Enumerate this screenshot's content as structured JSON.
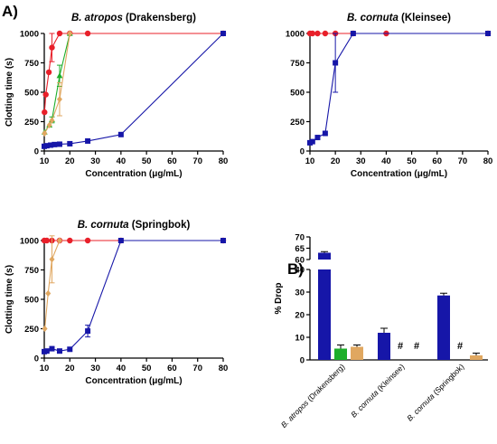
{
  "figure": {
    "label_a": "A)",
    "label_b": "B)"
  },
  "chart_data": [
    {
      "type": "line",
      "title_species": "B. atropos",
      "title_locality": " (Drakensberg)",
      "xlabel": "Concentration (μg/mL)",
      "ylabel": "Clotting time (s)",
      "xlim": [
        10,
        80
      ],
      "ylim": [
        0,
        1000
      ],
      "xticks": [
        10,
        20,
        30,
        40,
        50,
        60,
        70,
        80
      ],
      "yticks": [
        0,
        250,
        500,
        750,
        1000
      ],
      "series": [
        {
          "color": "#e8202a",
          "marker": "circle",
          "points": [
            [
              10.1,
              330
            ],
            [
              10.6,
              480
            ],
            [
              11.8,
              670
            ],
            [
              13,
              880
            ],
            [
              16,
              1000
            ],
            [
              20,
              1000
            ],
            [
              27,
              1000
            ],
            [
              80,
              1000
            ]
          ],
          "errors": [
            0,
            0,
            0,
            120,
            0,
            0,
            0,
            0
          ]
        },
        {
          "color": "#1cae2a",
          "marker": "triangle",
          "points": [
            [
              10.1,
              160
            ],
            [
              12,
              220
            ],
            [
              13,
              265
            ],
            [
              16,
              640
            ],
            [
              20,
              1000
            ]
          ],
          "errors": [
            0,
            0,
            25,
            90,
            0
          ]
        },
        {
          "color": "#e0a760",
          "marker": "diamond",
          "points": [
            [
              10.1,
              150
            ],
            [
              12,
              220
            ],
            [
              13,
              260
            ],
            [
              16,
              440
            ],
            [
              20,
              1000
            ]
          ],
          "errors": [
            0,
            0,
            0,
            140,
            0
          ]
        },
        {
          "color": "#1616a8",
          "marker": "square",
          "points": [
            [
              10,
              40
            ],
            [
              11,
              45
            ],
            [
              12.5,
              50
            ],
            [
              14,
              55
            ],
            [
              16,
              58
            ],
            [
              20,
              62
            ],
            [
              27,
              85
            ],
            [
              40,
              140
            ],
            [
              80,
              1000
            ]
          ],
          "errors": [
            0,
            0,
            0,
            0,
            0,
            0,
            0,
            0,
            0
          ]
        }
      ]
    },
    {
      "type": "line",
      "title_species": "B. cornuta",
      "title_locality": " (Kleinsee)",
      "xlabel": "Concentration (μg/mL)",
      "ylabel": "",
      "xlim": [
        10,
        80
      ],
      "ylim": [
        0,
        1000
      ],
      "xticks": [
        10,
        20,
        30,
        40,
        50,
        60,
        70,
        80
      ],
      "yticks": [
        0,
        250,
        500,
        750,
        1000
      ],
      "series": [
        {
          "color": "#e8202a",
          "marker": "circle",
          "points": [
            [
              10,
              1000
            ],
            [
              11,
              1000
            ],
            [
              13,
              1000
            ],
            [
              16,
              1000
            ],
            [
              20,
              1000
            ],
            [
              27,
              1000
            ],
            [
              40,
              1000
            ],
            [
              80,
              1000
            ]
          ],
          "errors": [
            0,
            0,
            0,
            0,
            0,
            0,
            0,
            0
          ]
        },
        {
          "color": "#1616a8",
          "marker": "square",
          "points": [
            [
              10,
              70
            ],
            [
              11,
              80
            ],
            [
              13,
              115
            ],
            [
              16,
              150
            ],
            [
              20,
              750
            ],
            [
              27,
              1000
            ],
            [
              80,
              1000
            ]
          ],
          "errors": [
            0,
            0,
            0,
            0,
            250,
            0,
            0
          ]
        }
      ]
    },
    {
      "type": "line",
      "title_species": "B. cornuta",
      "title_locality": " (Springbok)",
      "xlabel": "Concentration (μg/mL)",
      "ylabel": "Clotting time (s)",
      "xlim": [
        10,
        80
      ],
      "ylim": [
        0,
        1000
      ],
      "xticks": [
        10,
        20,
        30,
        40,
        50,
        60,
        70,
        80
      ],
      "yticks": [
        0,
        250,
        500,
        750,
        1000
      ],
      "series": [
        {
          "color": "#e8202a",
          "marker": "circle",
          "points": [
            [
              10,
              1000
            ],
            [
              11,
              1000
            ],
            [
              13,
              1000
            ],
            [
              16,
              1000
            ],
            [
              20,
              1000
            ],
            [
              27,
              1000
            ],
            [
              40,
              1000
            ],
            [
              80,
              1000
            ]
          ],
          "errors": [
            0,
            0,
            0,
            0,
            0,
            0,
            0,
            0
          ]
        },
        {
          "color": "#e0a760",
          "marker": "diamond",
          "points": [
            [
              10.2,
              250
            ],
            [
              11.5,
              550
            ],
            [
              13,
              840
            ],
            [
              16,
              1000
            ]
          ],
          "errors": [
            0,
            0,
            200,
            0
          ]
        },
        {
          "color": "#1616a8",
          "marker": "square",
          "points": [
            [
              10,
              55
            ],
            [
              11,
              60
            ],
            [
              13,
              80
            ],
            [
              16,
              60
            ],
            [
              20,
              75
            ],
            [
              27,
              230
            ],
            [
              40,
              1000
            ],
            [
              80,
              1000
            ]
          ],
          "errors": [
            0,
            0,
            0,
            0,
            0,
            50,
            0,
            0
          ]
        }
      ]
    },
    {
      "type": "bar",
      "ylabel": "% Drop",
      "ylim": [
        0,
        70
      ],
      "axis_break": [
        40,
        60
      ],
      "yticks": [
        0,
        10,
        20,
        30,
        40,
        60,
        65,
        70
      ],
      "categories": [
        "B. atropos (Drakensberg)",
        "B. cornuta (Kleinsee)",
        "B. cornuta (Springbok)"
      ],
      "series_colors": [
        "#1616a8",
        "#1cae2a",
        "#e0a760"
      ],
      "values": [
        [
          63,
          5,
          5.8
        ],
        [
          12,
          null,
          null
        ],
        [
          28.5,
          null,
          2
        ]
      ],
      "errors": [
        [
          0.5,
          1.6,
          0.8
        ],
        [
          2,
          0,
          0
        ],
        [
          1,
          0,
          1
        ]
      ],
      "no_data_marker": "#",
      "no_data": [
        [],
        [
          1,
          2
        ],
        [
          1
        ]
      ]
    }
  ]
}
